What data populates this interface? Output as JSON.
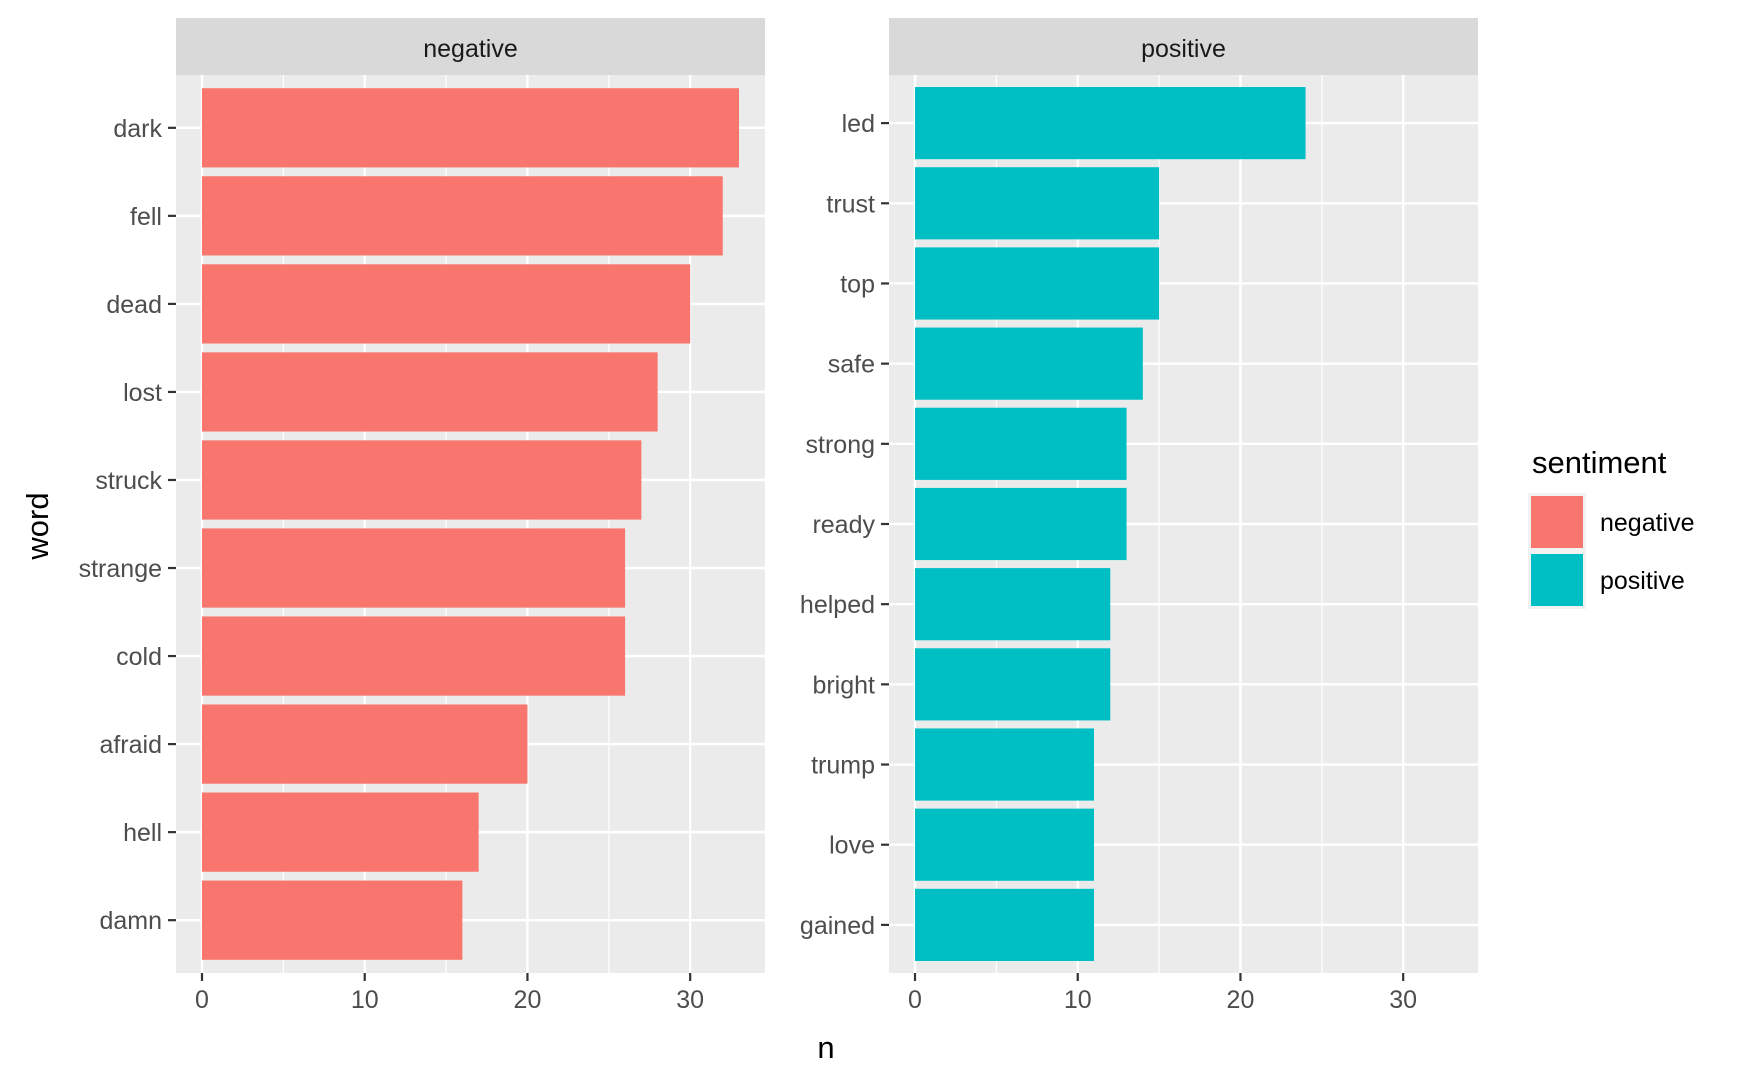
{
  "chart_data": {
    "type": "bar",
    "orientation": "horizontal",
    "xlabel": "n",
    "ylabel": "word",
    "xlim": [
      0,
      33
    ],
    "x_ticks": [
      0,
      10,
      20,
      30
    ],
    "grid": true,
    "legend_position": "right",
    "legend": {
      "title": "sentiment",
      "entries": [
        {
          "label": "negative",
          "color": "#F8766D"
        },
        {
          "label": "positive",
          "color": "#00BFC4"
        }
      ]
    },
    "facets": [
      {
        "strip": "negative",
        "color": "#F8766D",
        "categories": [
          "dark",
          "fell",
          "dead",
          "lost",
          "struck",
          "strange",
          "cold",
          "afraid",
          "hell",
          "damn"
        ],
        "values": [
          33,
          32,
          30,
          28,
          27,
          26,
          26,
          20,
          17,
          16
        ]
      },
      {
        "strip": "positive",
        "color": "#00BFC4",
        "categories": [
          "led",
          "trust",
          "top",
          "safe",
          "strong",
          "ready",
          "helped",
          "bright",
          "trump",
          "love",
          "gained"
        ],
        "values": [
          24,
          15,
          15,
          14,
          13,
          13,
          12,
          12,
          11,
          11,
          11
        ]
      }
    ]
  },
  "colors": {
    "panel_background": "#EBEBEB",
    "strip_background": "#D9D9D9",
    "grid": "#FFFFFF"
  }
}
